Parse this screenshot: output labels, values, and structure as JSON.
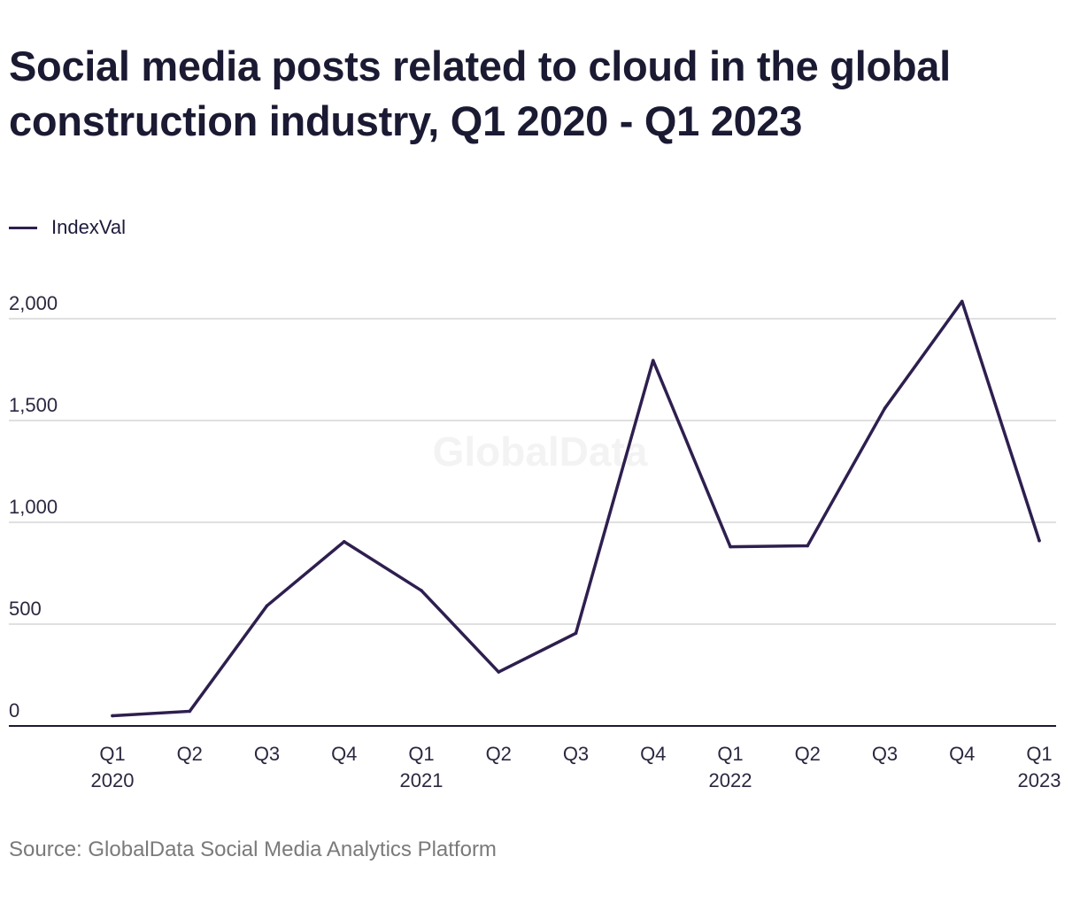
{
  "chart_data": {
    "type": "line",
    "title": "Social media posts related to cloud in the global construction industry, Q1 2020 - Q1 2023",
    "xlabel": "",
    "ylabel": "",
    "categories": [
      [
        "Q1",
        "2020"
      ],
      [
        "Q2",
        ""
      ],
      [
        "Q3",
        ""
      ],
      [
        "Q4",
        ""
      ],
      [
        "Q1",
        "2021"
      ],
      [
        "Q2",
        ""
      ],
      [
        "Q3",
        ""
      ],
      [
        "Q4",
        ""
      ],
      [
        "Q1",
        "2022"
      ],
      [
        "Q2",
        ""
      ],
      [
        "Q3",
        ""
      ],
      [
        "Q4",
        ""
      ],
      [
        "Q1",
        "2023"
      ]
    ],
    "series": [
      {
        "name": "IndexVal",
        "color": "#2e1f4f",
        "values": [
          50,
          72,
          590,
          905,
          665,
          265,
          455,
          1795,
          880,
          885,
          1560,
          2085,
          910
        ]
      }
    ],
    "ylim": [
      0,
      2000
    ],
    "yticks": [
      0,
      500,
      1000,
      1500,
      2000
    ],
    "ytick_labels": [
      "0",
      "500",
      "1,000",
      "1,500",
      "2,000"
    ],
    "grid": true,
    "legend": "top-left",
    "watermark": "GlobalData",
    "source": "Source: GlobalData Social Media Analytics Platform"
  }
}
